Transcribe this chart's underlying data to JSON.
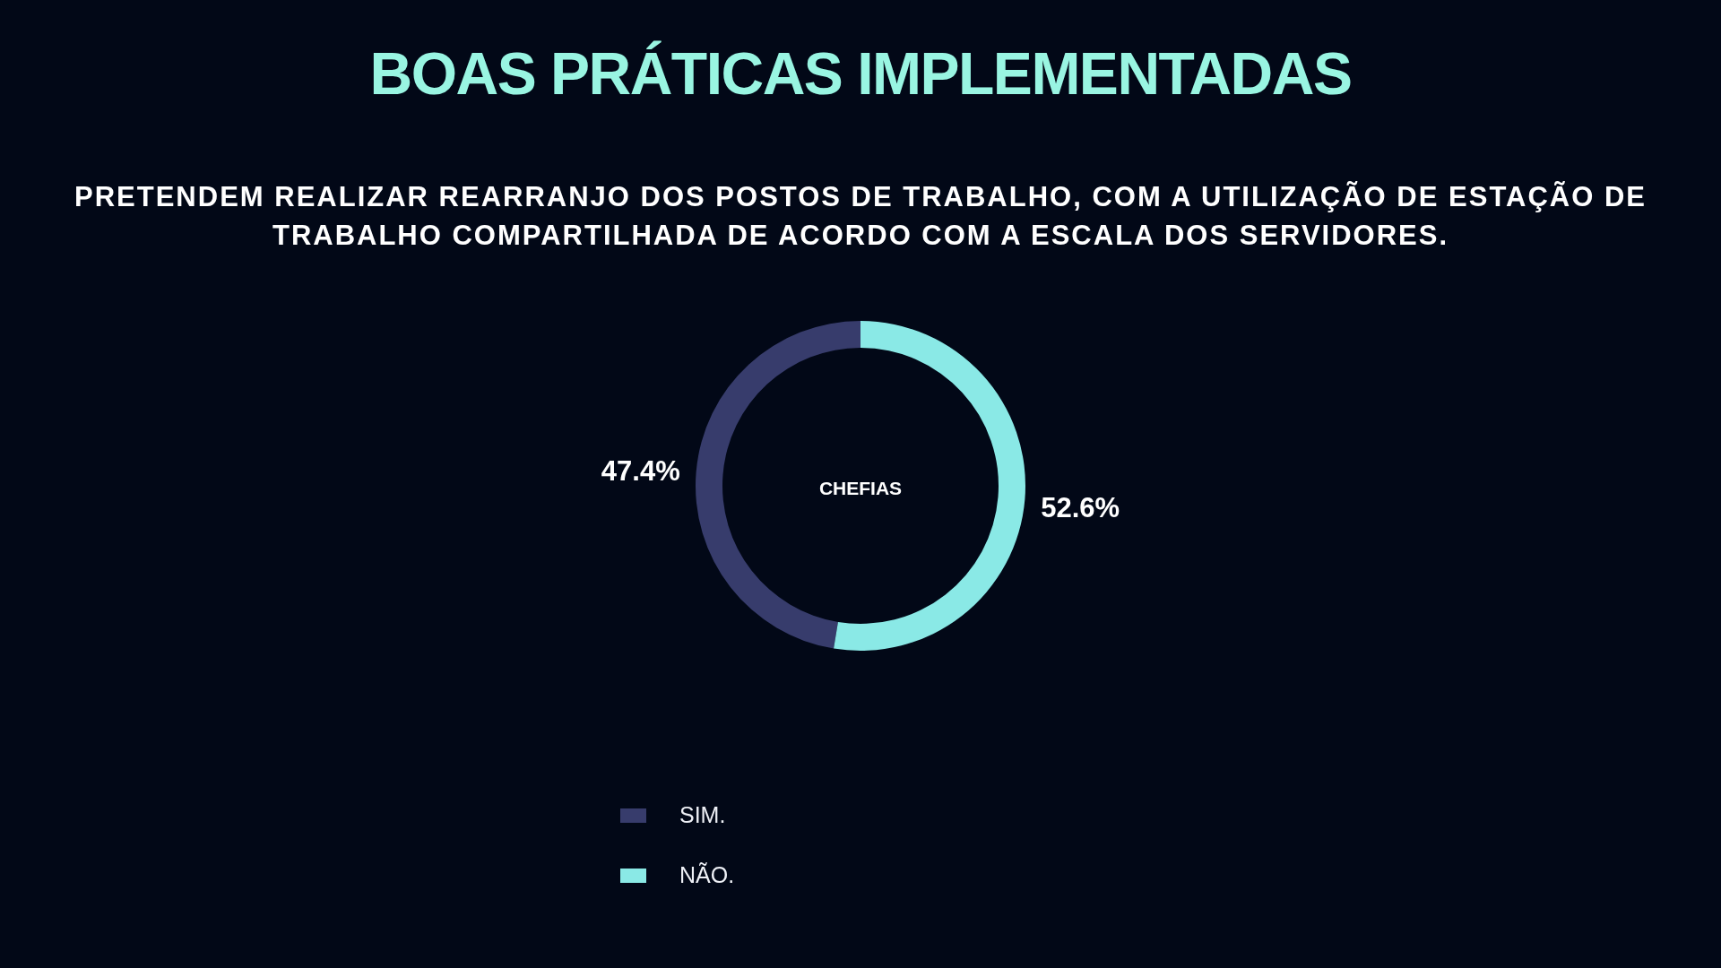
{
  "chart_data": {
    "type": "donut",
    "title": "BOAS PRÁTICAS IMPLEMENTADAS",
    "subtitle": "PRETENDEM REALIZAR REARRANJO DOS POSTOS DE TRABALHO, COM A UTILIZAÇÃO DE ESTAÇÃO DE TRABALHO COMPARTILHADA DE ACORDO COM A ESCALA DOS SERVIDORES.",
    "categories": [
      "SIM.",
      "NÃO."
    ],
    "values": [
      47.4,
      52.6
    ],
    "colors": [
      "#373c6c",
      "#8ae9e6"
    ],
    "value_labels": [
      "47.4%",
      "52.6%"
    ],
    "annotations": [
      "CHEFIAS"
    ],
    "legend": "bottom"
  }
}
